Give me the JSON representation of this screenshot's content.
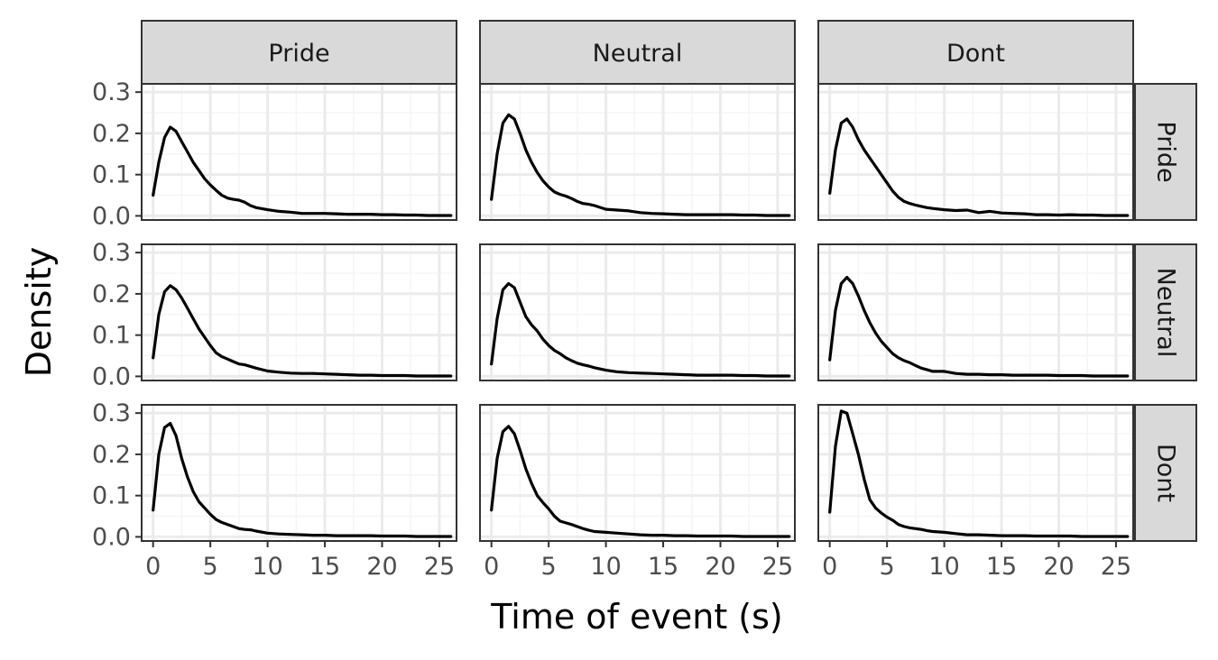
{
  "chart_data": {
    "type": "line",
    "xlabel": "Time of event (s)",
    "ylabel": "Density",
    "xlim": [
      -1,
      26.5
    ],
    "ylim": [
      -0.01,
      0.32
    ],
    "x_ticks": [
      0,
      5,
      10,
      15,
      20,
      25
    ],
    "y_ticks": [
      0.0,
      0.1,
      0.2,
      0.3
    ],
    "x_tick_labels": [
      "0",
      "5",
      "10",
      "15",
      "20",
      "25"
    ],
    "y_tick_labels": [
      "0.0",
      "0.1",
      "0.2",
      "0.3"
    ],
    "grid": true,
    "column_facets": [
      "Pride",
      "Neutral",
      "Dont"
    ],
    "row_facets": [
      "Pride",
      "Neutral",
      "Dont"
    ],
    "colors": {
      "line": "#000000",
      "grid_major": "#ebebeb",
      "grid_minor": "#f5f5f5",
      "strip_fill": "#d9d9d9",
      "border": "#333333",
      "tick_text": "#4d4d4d"
    },
    "panels": [
      {
        "row": "Pride",
        "col": "Pride",
        "x": [
          0,
          0.5,
          1,
          1.5,
          2,
          2.5,
          3,
          3.5,
          4,
          4.5,
          5,
          5.5,
          6,
          6.5,
          7,
          7.5,
          8,
          8.5,
          9,
          10,
          11,
          12,
          13,
          14,
          15,
          16,
          17,
          18,
          19,
          20,
          21,
          22,
          23,
          24,
          25,
          26
        ],
        "y": [
          0.05,
          0.13,
          0.19,
          0.215,
          0.205,
          0.18,
          0.155,
          0.13,
          0.11,
          0.09,
          0.075,
          0.062,
          0.05,
          0.043,
          0.04,
          0.038,
          0.033,
          0.025,
          0.02,
          0.015,
          0.011,
          0.009,
          0.006,
          0.006,
          0.006,
          0.005,
          0.004,
          0.004,
          0.004,
          0.003,
          0.003,
          0.002,
          0.002,
          0.001,
          0.001,
          0.001
        ]
      },
      {
        "row": "Pride",
        "col": "Neutral",
        "x": [
          0,
          0.5,
          1,
          1.5,
          2,
          2.5,
          3,
          3.5,
          4,
          4.5,
          5,
          5.5,
          6,
          6.5,
          7,
          7.5,
          8,
          8.5,
          9,
          10,
          11,
          12,
          13,
          14,
          15,
          16,
          17,
          18,
          19,
          20,
          21,
          22,
          23,
          24,
          25,
          26
        ],
        "y": [
          0.04,
          0.15,
          0.225,
          0.245,
          0.235,
          0.2,
          0.16,
          0.13,
          0.105,
          0.085,
          0.07,
          0.058,
          0.052,
          0.048,
          0.042,
          0.035,
          0.03,
          0.028,
          0.025,
          0.016,
          0.014,
          0.012,
          0.008,
          0.006,
          0.005,
          0.004,
          0.003,
          0.003,
          0.003,
          0.003,
          0.003,
          0.002,
          0.002,
          0.001,
          0.001,
          0.001
        ]
      },
      {
        "row": "Pride",
        "col": "Dont",
        "x": [
          0,
          0.5,
          1,
          1.5,
          2,
          2.5,
          3,
          3.5,
          4,
          4.5,
          5,
          5.5,
          6,
          6.5,
          7,
          7.5,
          8,
          8.5,
          9,
          10,
          11,
          12,
          13,
          14,
          15,
          16,
          17,
          18,
          19,
          20,
          21,
          22,
          23,
          24,
          25,
          26
        ],
        "y": [
          0.055,
          0.16,
          0.225,
          0.235,
          0.215,
          0.185,
          0.16,
          0.14,
          0.12,
          0.1,
          0.08,
          0.06,
          0.045,
          0.035,
          0.03,
          0.026,
          0.023,
          0.02,
          0.018,
          0.015,
          0.013,
          0.014,
          0.008,
          0.011,
          0.007,
          0.006,
          0.005,
          0.003,
          0.003,
          0.002,
          0.003,
          0.002,
          0.002,
          0.001,
          0.001,
          0.001
        ]
      },
      {
        "row": "Neutral",
        "col": "Pride",
        "x": [
          0,
          0.5,
          1,
          1.5,
          2,
          2.5,
          3,
          3.5,
          4,
          4.5,
          5,
          5.5,
          6,
          6.5,
          7,
          7.5,
          8,
          8.5,
          9,
          10,
          11,
          12,
          13,
          14,
          15,
          16,
          17,
          18,
          19,
          20,
          21,
          22,
          23,
          24,
          25,
          26
        ],
        "y": [
          0.045,
          0.15,
          0.205,
          0.22,
          0.21,
          0.19,
          0.165,
          0.14,
          0.115,
          0.095,
          0.075,
          0.057,
          0.048,
          0.042,
          0.036,
          0.03,
          0.028,
          0.024,
          0.02,
          0.013,
          0.01,
          0.008,
          0.007,
          0.007,
          0.006,
          0.005,
          0.004,
          0.003,
          0.003,
          0.002,
          0.002,
          0.002,
          0.001,
          0.001,
          0.001,
          0.001
        ]
      },
      {
        "row": "Neutral",
        "col": "Neutral",
        "x": [
          0,
          0.5,
          1,
          1.5,
          2,
          2.5,
          3,
          3.5,
          4,
          4.5,
          5,
          5.5,
          6,
          6.5,
          7,
          7.5,
          8,
          8.5,
          9,
          10,
          11,
          12,
          13,
          14,
          15,
          16,
          17,
          18,
          19,
          20,
          21,
          22,
          23,
          24,
          25,
          26
        ],
        "y": [
          0.03,
          0.14,
          0.21,
          0.225,
          0.215,
          0.18,
          0.145,
          0.125,
          0.11,
          0.09,
          0.075,
          0.063,
          0.055,
          0.045,
          0.038,
          0.032,
          0.028,
          0.025,
          0.021,
          0.015,
          0.011,
          0.009,
          0.008,
          0.007,
          0.006,
          0.005,
          0.004,
          0.003,
          0.003,
          0.003,
          0.003,
          0.002,
          0.002,
          0.001,
          0.001,
          0.001
        ]
      },
      {
        "row": "Neutral",
        "col": "Dont",
        "x": [
          0,
          0.5,
          1,
          1.5,
          2,
          2.5,
          3,
          3.5,
          4,
          4.5,
          5,
          5.5,
          6,
          6.5,
          7,
          7.5,
          8,
          8.5,
          9,
          10,
          11,
          12,
          13,
          14,
          15,
          16,
          17,
          18,
          19,
          20,
          21,
          22,
          23,
          24,
          25,
          26
        ],
        "y": [
          0.04,
          0.16,
          0.225,
          0.24,
          0.225,
          0.195,
          0.16,
          0.13,
          0.105,
          0.085,
          0.07,
          0.055,
          0.045,
          0.038,
          0.033,
          0.026,
          0.02,
          0.016,
          0.012,
          0.012,
          0.007,
          0.005,
          0.005,
          0.004,
          0.004,
          0.003,
          0.003,
          0.003,
          0.003,
          0.002,
          0.002,
          0.002,
          0.001,
          0.001,
          0.001,
          0.001
        ]
      },
      {
        "row": "Dont",
        "col": "Pride",
        "x": [
          0,
          0.5,
          1,
          1.5,
          2,
          2.5,
          3,
          3.5,
          4,
          4.5,
          5,
          5.5,
          6,
          6.5,
          7,
          7.5,
          8,
          8.5,
          9,
          10,
          11,
          12,
          13,
          14,
          15,
          16,
          17,
          18,
          19,
          20,
          21,
          22,
          23,
          24,
          25,
          26
        ],
        "y": [
          0.065,
          0.2,
          0.265,
          0.275,
          0.245,
          0.19,
          0.145,
          0.11,
          0.085,
          0.07,
          0.055,
          0.042,
          0.035,
          0.03,
          0.025,
          0.02,
          0.018,
          0.017,
          0.014,
          0.009,
          0.007,
          0.006,
          0.005,
          0.004,
          0.004,
          0.003,
          0.003,
          0.003,
          0.003,
          0.002,
          0.002,
          0.002,
          0.001,
          0.001,
          0.001,
          0.001
        ]
      },
      {
        "row": "Dont",
        "col": "Neutral",
        "x": [
          0,
          0.5,
          1,
          1.5,
          2,
          2.5,
          3,
          3.5,
          4,
          4.5,
          5,
          5.5,
          6,
          6.5,
          7,
          7.5,
          8,
          8.5,
          9,
          10,
          11,
          12,
          13,
          14,
          15,
          16,
          17,
          18,
          19,
          20,
          21,
          22,
          23,
          24,
          25,
          26
        ],
        "y": [
          0.065,
          0.19,
          0.255,
          0.268,
          0.25,
          0.21,
          0.165,
          0.13,
          0.1,
          0.083,
          0.068,
          0.05,
          0.038,
          0.034,
          0.03,
          0.025,
          0.02,
          0.016,
          0.013,
          0.011,
          0.009,
          0.007,
          0.005,
          0.004,
          0.004,
          0.003,
          0.003,
          0.002,
          0.002,
          0.002,
          0.002,
          0.001,
          0.001,
          0.001,
          0.001,
          0.001
        ]
      },
      {
        "row": "Dont",
        "col": "Dont",
        "x": [
          0,
          0.5,
          1,
          1.5,
          2,
          2.5,
          3,
          3.5,
          4,
          4.5,
          5,
          5.5,
          6,
          6.5,
          7,
          7.5,
          8,
          8.5,
          9,
          10,
          11,
          12,
          13,
          14,
          15,
          16,
          17,
          18,
          19,
          20,
          21,
          22,
          23,
          24,
          25,
          26
        ],
        "y": [
          0.06,
          0.22,
          0.305,
          0.3,
          0.25,
          0.2,
          0.14,
          0.09,
          0.07,
          0.058,
          0.048,
          0.04,
          0.03,
          0.025,
          0.022,
          0.02,
          0.018,
          0.015,
          0.013,
          0.011,
          0.008,
          0.005,
          0.005,
          0.004,
          0.003,
          0.003,
          0.003,
          0.002,
          0.002,
          0.002,
          0.002,
          0.001,
          0.001,
          0.001,
          0.001,
          0.001
        ]
      }
    ]
  }
}
